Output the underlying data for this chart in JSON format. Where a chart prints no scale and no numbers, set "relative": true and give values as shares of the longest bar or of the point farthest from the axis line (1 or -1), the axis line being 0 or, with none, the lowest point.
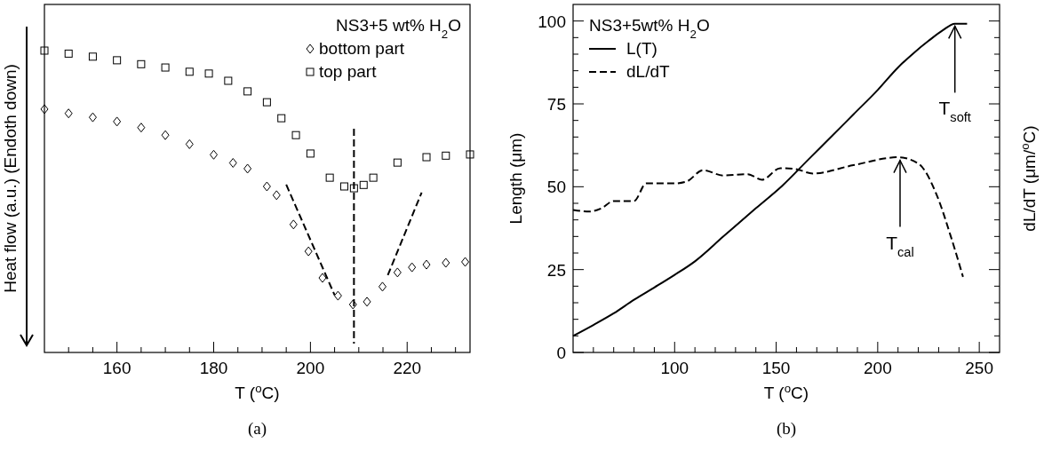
{
  "chart_data": [
    {
      "type": "scatter",
      "relative": true,
      "xlabel": "T ($^{o}$C)",
      "ylabel": "Heat flow (a.u.) (Endoth down)",
      "legend_title": "NS3+5 wt% H$_{2}$O",
      "legend": "top right",
      "annotations": [
        "(a)"
      ],
      "xlim": [
        145,
        233
      ],
      "xticks": [
        {
          "value": 150,
          "label": null
        },
        {
          "value": 155,
          "label": null
        },
        160,
        {
          "value": 165,
          "label": null
        },
        {
          "value": 170,
          "label": null
        },
        {
          "value": 175,
          "label": null
        },
        180,
        {
          "value": 185,
          "label": null
        },
        {
          "value": 190,
          "label": null
        },
        {
          "value": 195,
          "label": null
        },
        200,
        {
          "value": 205,
          "label": null
        },
        {
          "value": 210,
          "label": null
        },
        {
          "value": 215,
          "label": null
        },
        220,
        {
          "value": 225,
          "label": null
        },
        {
          "value": 230,
          "label": null
        }
      ],
      "ref_lines": [
        {
          "axis": "x",
          "value": 209,
          "line_style": "dashed",
          "color": "#000000"
        }
      ],
      "series": [
        {
          "name": "bottom part",
          "marker": "diamond",
          "color": "#000000",
          "x": [
            145,
            150,
            155,
            160,
            165,
            170,
            175,
            180,
            184,
            187,
            191,
            193,
            196.5,
            199.6,
            202.5,
            205.7,
            208.8,
            211.7,
            214.9,
            218,
            221,
            224,
            228,
            232
          ],
          "values": [
            0.806,
            0.792,
            0.779,
            0.765,
            0.745,
            0.72,
            0.69,
            0.655,
            0.628,
            0.609,
            0.55,
            0.521,
            0.424,
            0.335,
            0.247,
            0.188,
            0.159,
            0.168,
            0.218,
            0.265,
            0.282,
            0.291,
            0.297,
            0.3
          ]
        },
        {
          "name": "top part",
          "marker": "square",
          "color": "#000000",
          "x": [
            145,
            150,
            155,
            160,
            165,
            170,
            175,
            179,
            183,
            187,
            191,
            194,
            197,
            200,
            204,
            207,
            209,
            211,
            213,
            218,
            224,
            228,
            233
          ],
          "values": [
            1,
            0.99,
            0.98,
            0.968,
            0.955,
            0.944,
            0.93,
            0.924,
            0.9,
            0.865,
            0.829,
            0.776,
            0.72,
            0.659,
            0.579,
            0.55,
            0.544,
            0.555,
            0.579,
            0.629,
            0.647,
            0.652,
            0.656
          ]
        },
        {
          "type": "line",
          "line_style": "dashed",
          "color": "#000000",
          "x": [
            195,
            205
          ],
          "values": [
            0.556,
            0.19
          ]
        },
        {
          "type": "line",
          "line_style": "dashed",
          "color": "#000000",
          "x": [
            216,
            223
          ],
          "values": [
            0.256,
            0.53
          ]
        }
      ]
    },
    {
      "type": "line",
      "xlabel": "T ($^{o}$C)",
      "ylabel": "Length (μm)",
      "y2label": "dL/dT (μm/$^{o}$C)",
      "legend_title": "NS3+5wt% H$_{2}$O",
      "legend": "top left",
      "xlim": [
        50,
        260
      ],
      "ylim": [
        0,
        105
      ],
      "annotations": [
        "(b)",
        {
          "text": "T$_{soft}$",
          "x": 238,
          "y": 99
        },
        {
          "text": "T$_{cal}$",
          "x": 211,
          "y": 58.5
        }
      ],
      "xticks": [
        {
          "value": 60,
          "label": null
        },
        {
          "value": 70,
          "label": null
        },
        {
          "value": 80,
          "label": null
        },
        {
          "value": 90,
          "label": null
        },
        100,
        {
          "value": 110,
          "label": null
        },
        {
          "value": 120,
          "label": null
        },
        {
          "value": 130,
          "label": null
        },
        {
          "value": 140,
          "label": null
        },
        150,
        {
          "value": 160,
          "label": null
        },
        {
          "value": 170,
          "label": null
        },
        {
          "value": 180,
          "label": null
        },
        {
          "value": 190,
          "label": null
        },
        200,
        {
          "value": 210,
          "label": null
        },
        {
          "value": 220,
          "label": null
        },
        {
          "value": 230,
          "label": null
        },
        {
          "value": 240,
          "label": null
        },
        250
      ],
      "yticks": [
        0,
        {
          "value": 5,
          "label": null
        },
        {
          "value": 10,
          "label": null
        },
        {
          "value": 15,
          "label": null
        },
        {
          "value": 20,
          "label": null
        },
        25,
        {
          "value": 30,
          "label": null
        },
        {
          "value": 35,
          "label": null
        },
        {
          "value": 40,
          "label": null
        },
        {
          "value": 45,
          "label": null
        },
        50,
        {
          "value": 55,
          "label": null
        },
        {
          "value": 60,
          "label": null
        },
        {
          "value": 65,
          "label": null
        },
        {
          "value": 70,
          "label": null
        },
        75,
        {
          "value": 80,
          "label": null
        },
        {
          "value": 85,
          "label": null
        },
        {
          "value": 90,
          "label": null
        },
        {
          "value": 95,
          "label": null
        },
        100
      ],
      "series": [
        {
          "name": "L(T)",
          "line_style": "solid",
          "color": "#000000",
          "x": [
            50,
            60,
            70,
            80,
            90,
            100,
            110,
            124,
            140,
            153,
            166,
            177,
            188,
            200,
            210,
            218,
            225,
            232,
            238,
            244
          ],
          "values": [
            5,
            8.3,
            11.8,
            15.9,
            19.6,
            23.4,
            27.5,
            35,
            43.5,
            50.3,
            58.3,
            65,
            71.8,
            79.2,
            86,
            90.5,
            94,
            97.2,
            99.2,
            99.2
          ]
        },
        {
          "name": "dL/dT",
          "line_style": "dashed",
          "color": "#000000",
          "x": [
            50,
            58,
            64,
            70,
            80,
            86,
            100,
            106,
            114,
            124,
            136,
            143,
            152,
            159,
            168,
            188,
            210,
            220,
            229,
            236,
            242
          ],
          "values": [
            43,
            42.5,
            43.5,
            45.7,
            45.7,
            51,
            51,
            51.6,
            55,
            53.4,
            53.8,
            52.1,
            55.6,
            55.4,
            54,
            56.5,
            58.9,
            57,
            47.6,
            35,
            22.8
          ]
        }
      ]
    }
  ]
}
